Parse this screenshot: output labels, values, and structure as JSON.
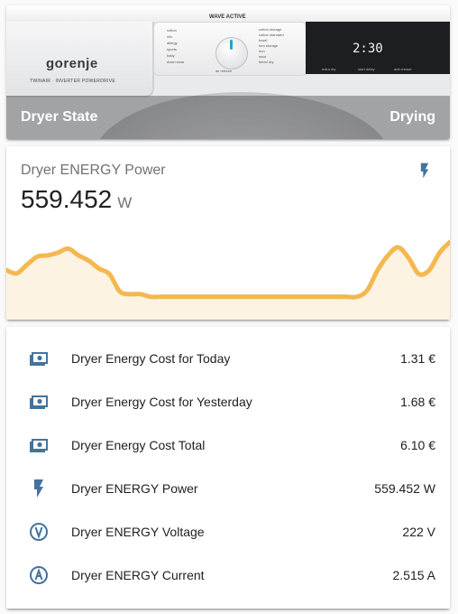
{
  "picture_card": {
    "caption_title": "Dryer State",
    "caption_state": "Drying",
    "appliance": {
      "brand": "gorenje",
      "sub_brand": "TWINAIR · INVERTER POWERDRIVE",
      "series": "WAVE ACTIVE",
      "display_time": "2:30",
      "left_controls": [
        "cotton",
        "mix",
        "allergy",
        "sports",
        "baby",
        "down wear"
      ],
      "right_controls": [
        "cotton storage",
        "cotton standard",
        "towel",
        "iron storage",
        "iron",
        "wool",
        "timed dry"
      ],
      "knob_label": "air refresh",
      "display_labels": [
        "extra dry",
        "start delay",
        "anti crease"
      ]
    }
  },
  "graph_card": {
    "name": "Dryer ENERGY Power",
    "value": "559.452",
    "unit": "W",
    "icon": "flash-icon",
    "line_color": "#f4b850",
    "fill_color": "#fdf3e2",
    "icon_color": "#44739e"
  },
  "chart_data": {
    "type": "area",
    "title": "",
    "values": [
      58,
      53,
      66,
      78,
      80,
      84,
      90,
      80,
      72,
      60,
      52,
      26,
      22,
      22,
      18,
      18,
      18,
      18,
      18,
      18,
      18,
      18,
      18,
      18,
      18,
      18,
      18,
      18,
      18,
      18,
      18,
      18,
      18,
      18,
      18,
      28,
      58,
      80,
      92,
      76,
      52,
      58,
      84,
      100
    ],
    "ylim": [
      0,
      100
    ]
  },
  "entities": [
    {
      "icon": "cash-multiple-icon",
      "name": "Dryer Energy Cost for Today",
      "value": "1.31 €"
    },
    {
      "icon": "cash-multiple-icon",
      "name": "Dryer Energy Cost for Yesterday",
      "value": "1.68 €"
    },
    {
      "icon": "cash-multiple-icon",
      "name": "Dryer Energy Cost Total",
      "value": "6.10 €"
    },
    {
      "icon": "flash-icon",
      "name": "Dryer ENERGY Power",
      "value": "559.452 W"
    },
    {
      "icon": "alpha-v-circle-outline-icon",
      "name": "Dryer ENERGY Voltage",
      "value": "222 V"
    },
    {
      "icon": "alpha-a-circle-outline-icon",
      "name": "Dryer ENERGY Current",
      "value": "2.515 A"
    }
  ]
}
